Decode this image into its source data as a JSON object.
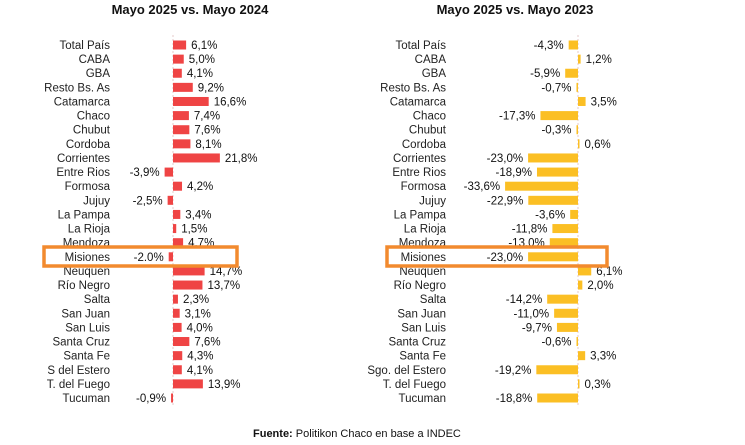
{
  "chart_data": [
    {
      "type": "bar",
      "orientation": "horizontal",
      "title": "Mayo 2025 vs. Mayo 2024",
      "categories": [
        "Total País",
        "CABA",
        "GBA",
        "Resto Bs. As",
        "Catamarca",
        "Chaco",
        "Chubut",
        "Cordoba",
        "Corrientes",
        "Entre Rios",
        "Formosa",
        "Jujuy",
        "La Pampa",
        "La Rioja",
        "Mendoza",
        "Misiones",
        "Neuquen",
        "Río Negro",
        "Salta",
        "San Juan",
        "San Luis",
        "Santa Cruz",
        "Santa Fe",
        "S del Estero",
        "T. del Fuego",
        "Tucuman"
      ],
      "values": [
        6.1,
        5.0,
        4.1,
        9.2,
        16.6,
        7.4,
        7.6,
        8.1,
        21.8,
        -3.9,
        4.2,
        -2.5,
        3.4,
        1.5,
        4.7,
        -2.0,
        14.7,
        13.7,
        2.3,
        3.1,
        4.0,
        7.6,
        4.3,
        4.1,
        13.9,
        -0.9
      ],
      "labels": [
        "6,1%",
        "5,0%",
        "4,1%",
        "9,2%",
        "16,6%",
        "7,4%",
        "7,6%",
        "8,1%",
        "21,8%",
        "-3,9%",
        "4,2%",
        "-2,5%",
        "3,4%",
        "1,5%",
        "4,7%",
        "-2.0%",
        "14,7%",
        "13,7%",
        "2,3%",
        "3,1%",
        "4,0%",
        "7,6%",
        "4,3%",
        "4,1%",
        "13,9%",
        "-0,9%"
      ],
      "color": "#ef4444",
      "highlight": "Misiones",
      "unit": "%"
    },
    {
      "type": "bar",
      "orientation": "horizontal",
      "title": "Mayo 2025 vs. Mayo 2023",
      "categories": [
        "Total País",
        "CABA",
        "GBA",
        "Resto Bs. As",
        "Catamarca",
        "Chaco",
        "Chubut",
        "Cordoba",
        "Corrientes",
        "Entre Rios",
        "Formosa",
        "Jujuy",
        "La Pampa",
        "La Rioja",
        "Mendoza",
        "Misiones",
        "Neuquen",
        "Río Negro",
        "Salta",
        "San Juan",
        "San Luis",
        "Santa Cruz",
        "Santa Fe",
        "Sgo. del Estero",
        "T. del Fuego",
        "Tucuman"
      ],
      "values": [
        -4.3,
        1.2,
        -5.9,
        -0.7,
        3.5,
        -17.3,
        -0.3,
        0.6,
        -23.0,
        -18.9,
        -33.6,
        -22.9,
        -3.6,
        -11.8,
        -13.0,
        -23.0,
        6.1,
        2.0,
        -14.2,
        -11.0,
        -9.7,
        -0.6,
        3.3,
        -19.2,
        0.3,
        -18.8
      ],
      "labels": [
        "-4,3%",
        "1,2%",
        "-5,9%",
        "-0,7%",
        "3,5%",
        "-17,3%",
        "-0,3%",
        "0,6%",
        "-23,0%",
        "-18,9%",
        "-33,6%",
        "-22,9%",
        "-3,6%",
        "-11,8%",
        "-13,0%",
        "-23,0%",
        "6,1%",
        "2,0%",
        "-14,2%",
        "-11,0%",
        "-9,7%",
        "-0,6%",
        "3,3%",
        "-19,2%",
        "0,3%",
        "-18,8%"
      ],
      "color": "#fbbf24",
      "highlight": "Misiones",
      "unit": "%"
    }
  ],
  "source": {
    "prefix": "Fuente:",
    "text": " Politikon Chaco en base a INDEC"
  },
  "highlight_color": "#f28a2e"
}
